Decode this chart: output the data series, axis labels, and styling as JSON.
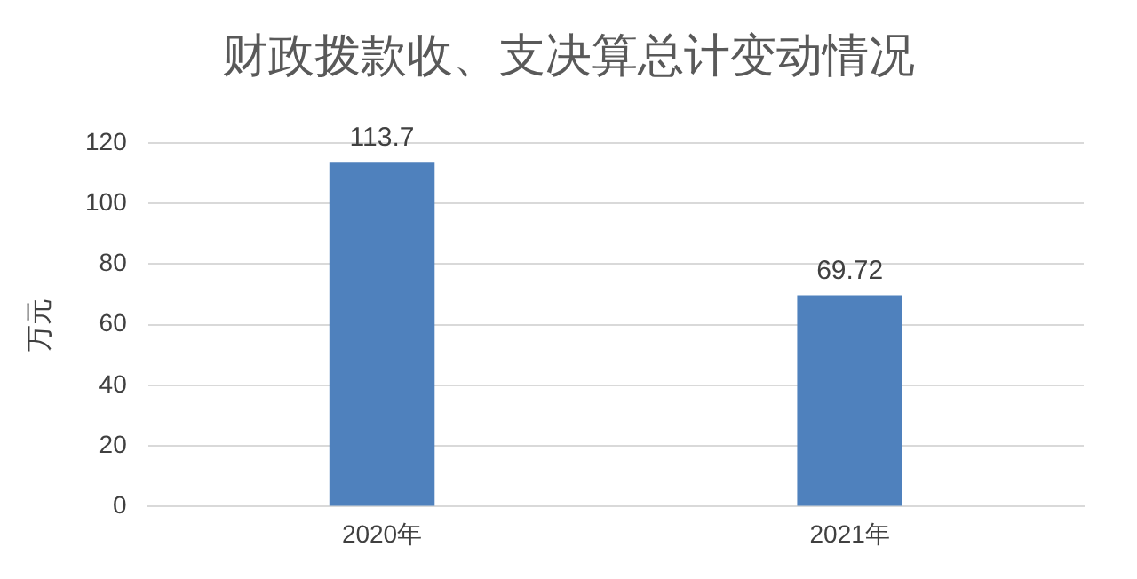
{
  "chart_data": {
    "type": "bar",
    "title": "财政拨款收、支决算总计变动情况",
    "ylabel": "万元",
    "categories": [
      "2020年",
      "2021年"
    ],
    "values": [
      113.7,
      69.72
    ],
    "color": "#4f81bd",
    "ylim": [
      0,
      120
    ],
    "yticks": [
      0,
      20,
      40,
      60,
      80,
      100,
      120
    ],
    "grid": "y",
    "data_labels": true
  }
}
